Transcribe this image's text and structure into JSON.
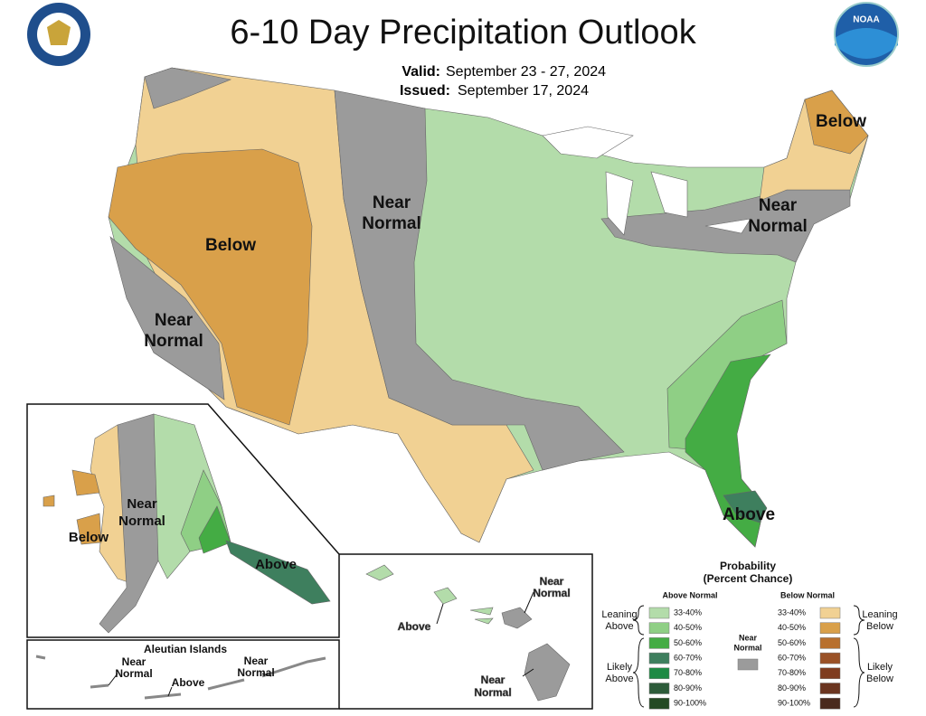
{
  "header": {
    "title": "6-10 Day Precipitation Outlook",
    "valid_label": "Valid:",
    "valid_dates": "September 23 - 27, 2024",
    "issued_label": "Issued:",
    "issued_date": "September 17, 2024"
  },
  "logos": {
    "noaa": "NOAA"
  },
  "conus": {
    "below_west": "Below",
    "near_normal_central": [
      "Near",
      "Normal"
    ],
    "near_normal_west": [
      "Near",
      "Normal"
    ],
    "below_northeast": "Below",
    "near_normal_northeast": [
      "Near",
      "Normal"
    ],
    "above_southeast": "Above"
  },
  "alaska": {
    "below": "Below",
    "near_normal": [
      "Near",
      "Normal"
    ],
    "above": "Above"
  },
  "aleutians": {
    "title": "Aleutian Islands",
    "near_normal_west": [
      "Near",
      "Normal"
    ],
    "above": "Above",
    "near_normal_east": [
      "Near",
      "Normal"
    ]
  },
  "hawaii": {
    "above": "Above",
    "near_normal_north": [
      "Near",
      "Normal"
    ],
    "near_normal_south": [
      "Near",
      "Normal"
    ]
  },
  "legend": {
    "title": [
      "Probability",
      "(Percent Chance)"
    ],
    "above_header": "Above Normal",
    "below_header": "Below Normal",
    "near_normal": [
      "Near",
      "Normal"
    ],
    "near_normal_color": "#9b9b9b",
    "leaning_above": [
      "Leaning",
      "Above"
    ],
    "likely_above": [
      "Likely",
      "Above"
    ],
    "leaning_below": [
      "Leaning",
      "Below"
    ],
    "likely_below": [
      "Likely",
      "Below"
    ],
    "above_categories": [
      {
        "label": "33-40%",
        "color": "#b3dcaa"
      },
      {
        "label": "40-50%",
        "color": "#8fcf85"
      },
      {
        "label": "50-60%",
        "color": "#44ac44"
      },
      {
        "label": "60-70%",
        "color": "#3e7f5e"
      },
      {
        "label": "70-80%",
        "color": "#1e8a44"
      },
      {
        "label": "80-90%",
        "color": "#2d5c3a"
      },
      {
        "label": "90-100%",
        "color": "#234a23"
      }
    ],
    "below_categories": [
      {
        "label": "33-40%",
        "color": "#f1d193"
      },
      {
        "label": "40-50%",
        "color": "#d9a04a"
      },
      {
        "label": "50-60%",
        "color": "#b8702e"
      },
      {
        "label": "60-70%",
        "color": "#9a5126"
      },
      {
        "label": "70-80%",
        "color": "#7f3c1f"
      },
      {
        "label": "80-90%",
        "color": "#6b3520"
      },
      {
        "label": "90-100%",
        "color": "#4a2a1d"
      }
    ]
  }
}
